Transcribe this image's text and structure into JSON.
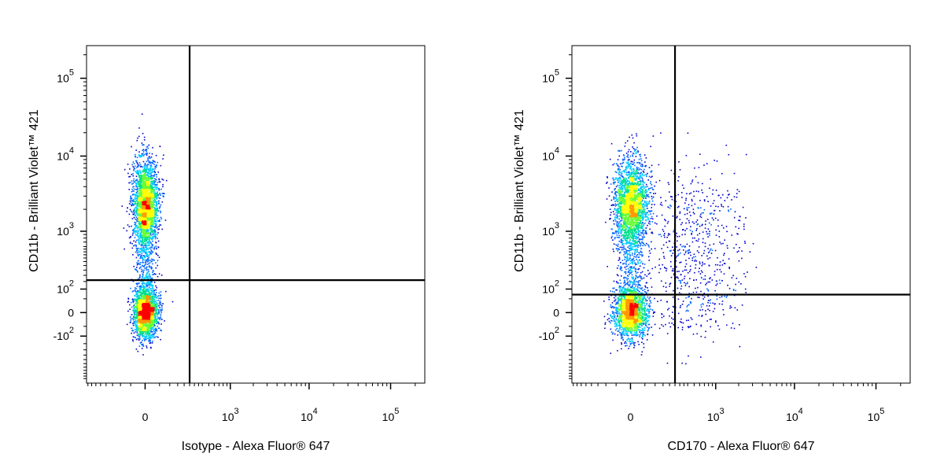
{
  "chart_data": [
    {
      "type": "scatter",
      "style": "density-colored flow cytometry dot plot with quadrant gates",
      "xlabel": "Isotype - Alexa Fluor® 647",
      "ylabel": "CD11b - Brilliant Violet™ 421",
      "x_scale": "biexponential",
      "y_scale": "biexponential",
      "x_ticks": [
        {
          "value": 0,
          "base": "0",
          "exp": ""
        },
        {
          "value": 1000,
          "base": "10",
          "exp": "3"
        },
        {
          "value": 10000,
          "base": "10",
          "exp": "4"
        },
        {
          "value": 100000,
          "base": "10",
          "exp": "5"
        }
      ],
      "y_ticks": [
        {
          "value": -100,
          "base": "-10",
          "exp": "2"
        },
        {
          "value": 0,
          "base": "0",
          "exp": ""
        },
        {
          "value": 100,
          "base": "10",
          "exp": "2"
        },
        {
          "value": 1000,
          "base": "10",
          "exp": "3"
        },
        {
          "value": 10000,
          "base": "10",
          "exp": "4"
        },
        {
          "value": 100000,
          "base": "10",
          "exp": "5"
        }
      ],
      "quadrant_gate": {
        "x": 250,
        "y": 160
      },
      "populations": [
        {
          "name": "CD11b-high, negative",
          "x_center": 0,
          "y_center": 2500,
          "relative_size": 0.55
        },
        {
          "name": "CD11b-low, negative",
          "x_center": 0,
          "y_center": 0,
          "relative_size": 0.45
        }
      ],
      "positive_events": "none"
    },
    {
      "type": "scatter",
      "style": "density-colored flow cytometry dot plot with quadrant gates",
      "xlabel": "CD170 - Alexa Fluor® 647",
      "ylabel": "CD11b - Brilliant Violet™ 421",
      "x_scale": "biexponential",
      "y_scale": "biexponential",
      "x_ticks": [
        {
          "value": 0,
          "base": "0",
          "exp": ""
        },
        {
          "value": 1000,
          "base": "10",
          "exp": "3"
        },
        {
          "value": 10000,
          "base": "10",
          "exp": "4"
        },
        {
          "value": 100000,
          "base": "10",
          "exp": "5"
        }
      ],
      "y_ticks": [
        {
          "value": -100,
          "base": "-10",
          "exp": "2"
        },
        {
          "value": 0,
          "base": "0",
          "exp": ""
        },
        {
          "value": 100,
          "base": "10",
          "exp": "2"
        },
        {
          "value": 1000,
          "base": "10",
          "exp": "3"
        },
        {
          "value": 10000,
          "base": "10",
          "exp": "4"
        },
        {
          "value": 100000,
          "base": "10",
          "exp": "5"
        }
      ],
      "quadrant_gate": {
        "x": 250,
        "y": 70
      },
      "populations": [
        {
          "name": "CD11b-high, negative",
          "x_center": 0,
          "y_center": 2500,
          "relative_size": 0.5
        },
        {
          "name": "CD11b-low, negative",
          "x_center": 0,
          "y_center": 0,
          "relative_size": 0.4
        },
        {
          "name": "CD170-positive",
          "x_center": 450,
          "y_center": 500,
          "relative_size": 0.1
        }
      ],
      "positive_events": "sparse"
    }
  ],
  "colors": {
    "density_ramp": [
      "#0000cc",
      "#0066ff",
      "#00ccff",
      "#00e08a",
      "#66ff33",
      "#ffff00",
      "#ff9900",
      "#ff0000"
    ],
    "axis": "#000000",
    "gate": "#000000"
  }
}
